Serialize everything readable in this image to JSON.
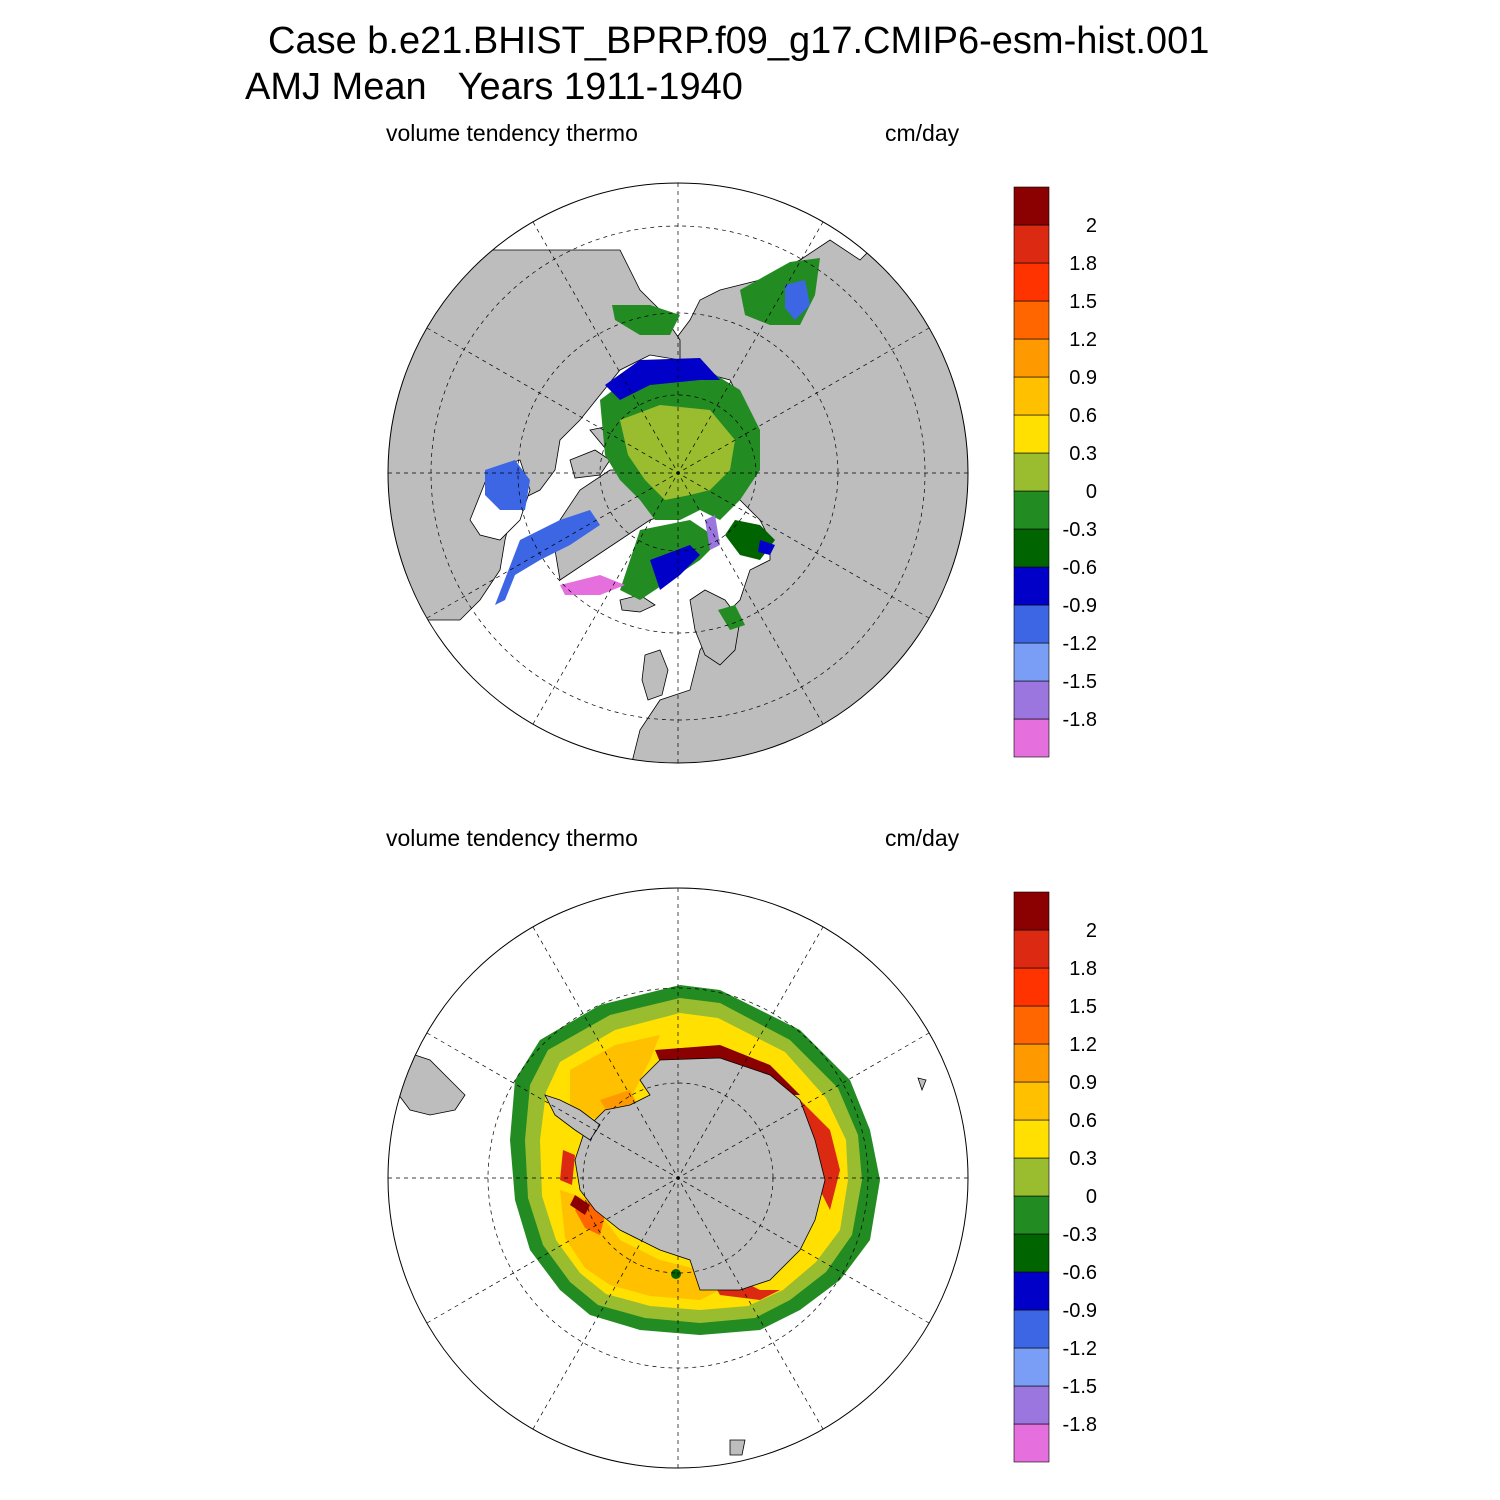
{
  "header": {
    "case_line": "Case b.e21.BHIST_BPRP.f09_g17.CMIP6-esm-hist.001",
    "period_line": "AMJ Mean   Years 1911-1940"
  },
  "panels": [
    {
      "variable": "volume tendency thermo",
      "units": "cm/day",
      "hemisphere": "north"
    },
    {
      "variable": "volume tendency thermo",
      "units": "cm/day",
      "hemisphere": "south"
    }
  ],
  "colorbar": {
    "colors": [
      "#e56fdd",
      "#9b76de",
      "#7a9ef5",
      "#3c66e4",
      "#0000c8",
      "#006400",
      "#228b22",
      "#9abd30",
      "#ffe000",
      "#ffc000",
      "#ff9900",
      "#ff6600",
      "#ff3300",
      "#dc2a12",
      "#8b0000"
    ],
    "labels": [
      "-1.8",
      "-1.5",
      "-1.2",
      "-0.9",
      "-0.6",
      "-0.3",
      "0",
      "0.3",
      "0.6",
      "0.9",
      "1.2",
      "1.5",
      "1.8",
      "2"
    ]
  },
  "map_colors": {
    "land": "#bdbdbd",
    "ocean": "#ffffff"
  }
}
